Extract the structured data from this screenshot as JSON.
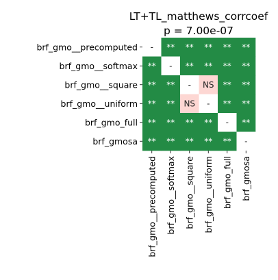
{
  "chart_data": {
    "type": "heatmap",
    "title": "LT+TL_matthews_corrcoef",
    "subtitle": "p = 7.00e-07",
    "xlabel": "",
    "ylabel": "",
    "labels": [
      "brf_gmo__precomputed",
      "brf_gmo__softmax",
      "brf_gmo__square",
      "brf_gmo__uniform",
      "brf_gmo_full",
      "brf_gmosa"
    ],
    "cells": [
      [
        "-",
        "**",
        "**",
        "**",
        "**",
        "**"
      ],
      [
        "**",
        "-",
        "**",
        "**",
        "**",
        "**"
      ],
      [
        "**",
        "**",
        "-",
        "NS",
        "**",
        "**"
      ],
      [
        "**",
        "**",
        "NS",
        "-",
        "**",
        "**"
      ],
      [
        "**",
        "**",
        "**",
        "**",
        "-",
        "**"
      ],
      [
        "**",
        "**",
        "**",
        "**",
        "**",
        "-"
      ]
    ],
    "colors": {
      "significant": "#238b45",
      "not_significant": "#fdd7d3",
      "diagonal": "#ffffff",
      "text_on_significant": "#ffffff",
      "text_on_other": "#262626"
    },
    "grid": false,
    "legend": "none"
  }
}
